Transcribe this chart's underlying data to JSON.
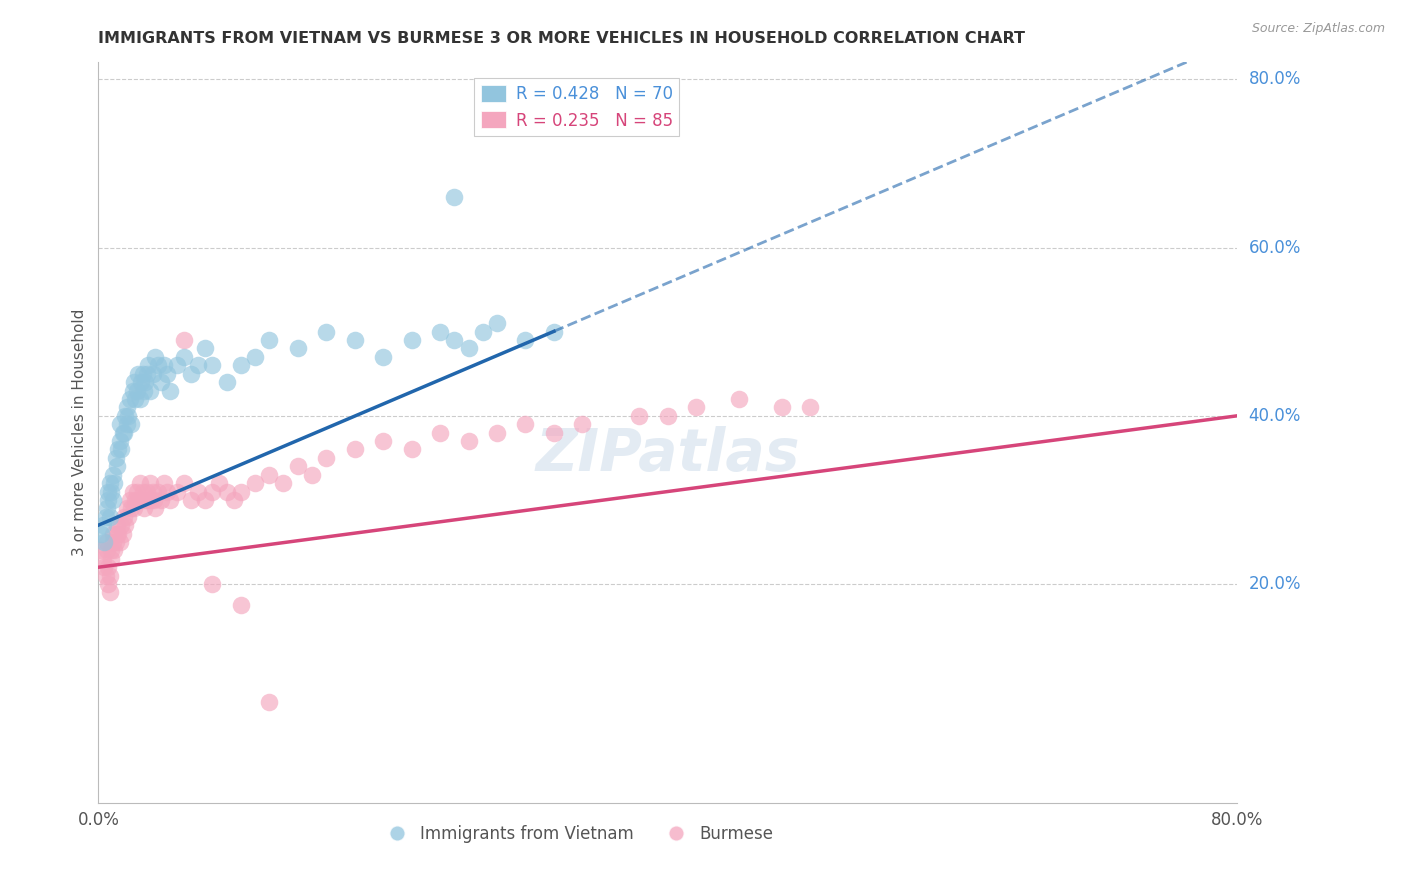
{
  "title": "IMMIGRANTS FROM VIETNAM VS BURMESE 3 OR MORE VEHICLES IN HOUSEHOLD CORRELATION CHART",
  "source": "Source: ZipAtlas.com",
  "ylabel": "3 or more Vehicles in Household",
  "xlim": [
    0.0,
    0.8
  ],
  "ylim": [
    -0.06,
    0.82
  ],
  "ytick_positions": [
    0.2,
    0.4,
    0.6,
    0.8
  ],
  "ytick_labels": [
    "20.0%",
    "40.0%",
    "60.0%",
    "80.0%"
  ],
  "viet_color": "#92c5de",
  "viet_line_color": "#2166ac",
  "burm_color": "#f4a6be",
  "burm_line_color": "#d6457a",
  "grid_color": "#cccccc",
  "background_color": "#ffffff",
  "legend_series": [
    {
      "label": "Immigrants from Vietnam",
      "R": "0.428",
      "N": "70",
      "swatch_color": "#92c5de"
    },
    {
      "label": "Burmese",
      "R": "0.235",
      "N": "85",
      "swatch_color": "#f4a6be"
    }
  ],
  "vietnam_x": [
    0.002,
    0.003,
    0.004,
    0.005,
    0.006,
    0.007,
    0.007,
    0.008,
    0.008,
    0.009,
    0.01,
    0.01,
    0.011,
    0.012,
    0.013,
    0.014,
    0.015,
    0.015,
    0.016,
    0.017,
    0.018,
    0.019,
    0.02,
    0.02,
    0.021,
    0.022,
    0.023,
    0.024,
    0.025,
    0.026,
    0.027,
    0.028,
    0.029,
    0.03,
    0.031,
    0.032,
    0.033,
    0.034,
    0.035,
    0.036,
    0.038,
    0.04,
    0.042,
    0.044,
    0.046,
    0.048,
    0.05,
    0.055,
    0.06,
    0.065,
    0.07,
    0.075,
    0.08,
    0.09,
    0.1,
    0.11,
    0.12,
    0.14,
    0.16,
    0.18,
    0.2,
    0.22,
    0.24,
    0.25,
    0.26,
    0.27,
    0.28,
    0.3,
    0.32,
    0.25
  ],
  "vietnam_y": [
    0.26,
    0.27,
    0.25,
    0.28,
    0.29,
    0.3,
    0.31,
    0.32,
    0.28,
    0.31,
    0.3,
    0.33,
    0.32,
    0.35,
    0.34,
    0.36,
    0.37,
    0.39,
    0.36,
    0.38,
    0.38,
    0.4,
    0.39,
    0.41,
    0.4,
    0.42,
    0.39,
    0.43,
    0.44,
    0.42,
    0.43,
    0.45,
    0.42,
    0.44,
    0.45,
    0.43,
    0.44,
    0.45,
    0.46,
    0.43,
    0.45,
    0.47,
    0.46,
    0.44,
    0.46,
    0.45,
    0.43,
    0.46,
    0.47,
    0.45,
    0.46,
    0.48,
    0.46,
    0.44,
    0.46,
    0.47,
    0.49,
    0.48,
    0.5,
    0.49,
    0.47,
    0.49,
    0.5,
    0.49,
    0.48,
    0.5,
    0.51,
    0.49,
    0.5,
    0.66
  ],
  "burmese_x": [
    0.002,
    0.003,
    0.004,
    0.005,
    0.006,
    0.006,
    0.007,
    0.007,
    0.008,
    0.008,
    0.009,
    0.009,
    0.01,
    0.01,
    0.011,
    0.012,
    0.013,
    0.013,
    0.014,
    0.015,
    0.016,
    0.017,
    0.018,
    0.019,
    0.02,
    0.021,
    0.022,
    0.023,
    0.024,
    0.025,
    0.026,
    0.027,
    0.028,
    0.029,
    0.03,
    0.031,
    0.032,
    0.033,
    0.034,
    0.035,
    0.036,
    0.037,
    0.038,
    0.039,
    0.04,
    0.042,
    0.044,
    0.046,
    0.048,
    0.05,
    0.055,
    0.06,
    0.065,
    0.07,
    0.075,
    0.08,
    0.085,
    0.09,
    0.095,
    0.1,
    0.11,
    0.12,
    0.13,
    0.14,
    0.15,
    0.16,
    0.18,
    0.2,
    0.22,
    0.24,
    0.26,
    0.28,
    0.3,
    0.32,
    0.34,
    0.38,
    0.4,
    0.42,
    0.45,
    0.48,
    0.5,
    0.06,
    0.08,
    0.1,
    0.12
  ],
  "burmese_y": [
    0.24,
    0.23,
    0.22,
    0.21,
    0.25,
    0.24,
    0.2,
    0.22,
    0.19,
    0.21,
    0.23,
    0.24,
    0.25,
    0.26,
    0.24,
    0.25,
    0.26,
    0.27,
    0.26,
    0.25,
    0.27,
    0.26,
    0.28,
    0.27,
    0.29,
    0.28,
    0.3,
    0.29,
    0.31,
    0.29,
    0.3,
    0.31,
    0.3,
    0.32,
    0.3,
    0.31,
    0.29,
    0.3,
    0.31,
    0.3,
    0.32,
    0.3,
    0.31,
    0.3,
    0.29,
    0.31,
    0.3,
    0.32,
    0.31,
    0.3,
    0.31,
    0.32,
    0.3,
    0.31,
    0.3,
    0.31,
    0.32,
    0.31,
    0.3,
    0.31,
    0.32,
    0.33,
    0.32,
    0.34,
    0.33,
    0.35,
    0.36,
    0.37,
    0.36,
    0.38,
    0.37,
    0.38,
    0.39,
    0.38,
    0.39,
    0.4,
    0.4,
    0.41,
    0.42,
    0.41,
    0.41,
    0.49,
    0.2,
    0.175,
    0.06
  ],
  "viet_line_x0": 0.0,
  "viet_line_x_solid_end": 0.32,
  "viet_line_x_dash_end": 0.8,
  "viet_line_y0": 0.27,
  "viet_line_slope": 0.72,
  "burm_line_x0": 0.0,
  "burm_line_x_end": 0.8,
  "burm_line_y0": 0.22,
  "burm_line_slope": 0.225
}
